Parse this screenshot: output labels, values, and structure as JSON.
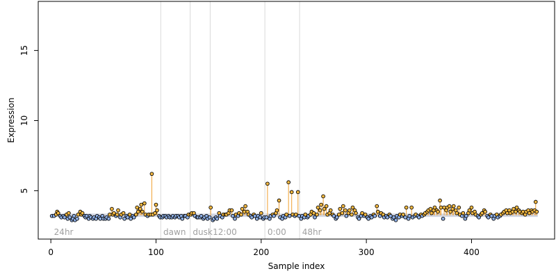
{
  "chart_data": {
    "type": "scatter",
    "xlabel": "Sample index",
    "ylabel": "Expression",
    "xlim": [
      -12,
      479
    ],
    "ylim": [
      1.55,
      18.5
    ],
    "x_ticks": [
      0,
      100,
      200,
      300,
      400
    ],
    "y_ticks": [
      5,
      10,
      15
    ],
    "baseline": 3.25,
    "colors": {
      "stem": "#f0a030",
      "baseline_band": "#9aa4c0",
      "point_high": "#f5b942",
      "point_low": "#8fb0e6",
      "point_edge": "#000000",
      "separator": "#d9d9d9",
      "segment_label": "#a0a0a0"
    },
    "segments": [
      {
        "label": "24hr",
        "start": 1,
        "end": 104
      },
      {
        "label": "dawn",
        "start": 105,
        "end": 132
      },
      {
        "label": "dusk",
        "start": 133,
        "end": 151
      },
      {
        "label": "12:00",
        "start": 152,
        "end": 203
      },
      {
        "label": "0:00",
        "start": 204,
        "end": 236
      },
      {
        "label": "48hr",
        "start": 237,
        "end": 463
      }
    ],
    "separators": [
      104.5,
      132.5,
      151.5,
      203.5,
      236.5
    ],
    "points": [
      [
        1,
        3.2
      ],
      [
        3,
        3.2
      ],
      [
        5,
        3.3
      ],
      [
        6,
        3.5
      ],
      [
        7,
        3.4
      ],
      [
        9,
        3.2
      ],
      [
        10,
        3.1
      ],
      [
        12,
        3.2
      ],
      [
        13,
        3.1
      ],
      [
        15,
        3.3
      ],
      [
        16,
        3.0
      ],
      [
        17,
        3.4
      ],
      [
        18,
        3.1
      ],
      [
        20,
        2.9
      ],
      [
        21,
        3.0
      ],
      [
        22,
        3.2
      ],
      [
        23,
        2.9
      ],
      [
        25,
        3.0
      ],
      [
        26,
        3.3
      ],
      [
        28,
        3.5
      ],
      [
        29,
        3.3
      ],
      [
        30,
        3.4
      ],
      [
        32,
        3.2
      ],
      [
        33,
        3.1
      ],
      [
        34,
        3.2
      ],
      [
        36,
        3.0
      ],
      [
        37,
        3.2
      ],
      [
        38,
        3.1
      ],
      [
        40,
        3.0
      ],
      [
        41,
        3.1
      ],
      [
        43,
        3.0
      ],
      [
        44,
        3.2
      ],
      [
        46,
        3.1
      ],
      [
        47,
        3.0
      ],
      [
        49,
        3.2
      ],
      [
        50,
        3.0
      ],
      [
        52,
        3.0
      ],
      [
        53,
        3.1
      ],
      [
        55,
        3.0
      ],
      [
        56,
        3.3
      ],
      [
        58,
        3.7
      ],
      [
        59,
        3.3
      ],
      [
        60,
        3.4
      ],
      [
        62,
        3.2
      ],
      [
        63,
        3.3
      ],
      [
        64,
        3.6
      ],
      [
        66,
        3.1
      ],
      [
        67,
        3.3
      ],
      [
        69,
        3.4
      ],
      [
        70,
        3.0
      ],
      [
        72,
        3.2
      ],
      [
        73,
        3.1
      ],
      [
        75,
        3.3
      ],
      [
        76,
        3.0
      ],
      [
        78,
        3.2
      ],
      [
        79,
        3.1
      ],
      [
        81,
        3.3
      ],
      [
        82,
        3.8
      ],
      [
        83,
        3.5
      ],
      [
        85,
        3.7
      ],
      [
        86,
        4.0
      ],
      [
        87,
        3.5
      ],
      [
        89,
        4.1
      ],
      [
        90,
        3.3
      ],
      [
        92,
        3.2
      ],
      [
        93,
        3.3
      ],
      [
        95,
        3.3
      ],
      [
        96,
        6.2
      ],
      [
        97,
        3.3
      ],
      [
        99,
        3.4
      ],
      [
        100,
        4.0
      ],
      [
        101,
        3.6
      ],
      [
        103,
        3.2
      ],
      [
        104,
        3.1
      ],
      [
        106,
        3.1
      ],
      [
        107,
        3.2
      ],
      [
        109,
        3.2
      ],
      [
        110,
        3.1
      ],
      [
        112,
        3.2
      ],
      [
        113,
        3.1
      ],
      [
        115,
        3.1
      ],
      [
        116,
        3.2
      ],
      [
        118,
        3.1
      ],
      [
        119,
        3.2
      ],
      [
        121,
        3.2
      ],
      [
        122,
        3.1
      ],
      [
        124,
        3.2
      ],
      [
        125,
        3.0
      ],
      [
        127,
        3.2
      ],
      [
        128,
        3.2
      ],
      [
        130,
        3.1
      ],
      [
        131,
        3.3
      ],
      [
        133,
        3.3
      ],
      [
        134,
        3.4
      ],
      [
        136,
        3.4
      ],
      [
        137,
        3.2
      ],
      [
        139,
        3.1
      ],
      [
        140,
        3.1
      ],
      [
        142,
        3.1
      ],
      [
        143,
        3.2
      ],
      [
        145,
        3.0
      ],
      [
        146,
        3.1
      ],
      [
        148,
        3.2
      ],
      [
        149,
        3.0
      ],
      [
        151,
        3.1
      ],
      [
        152,
        3.8
      ],
      [
        154,
        2.9
      ],
      [
        155,
        3.0
      ],
      [
        157,
        3.1
      ],
      [
        158,
        3.0
      ],
      [
        160,
        3.4
      ],
      [
        161,
        3.2
      ],
      [
        163,
        3.1
      ],
      [
        164,
        3.3
      ],
      [
        166,
        3.3
      ],
      [
        167,
        3.3
      ],
      [
        169,
        3.4
      ],
      [
        170,
        3.6
      ],
      [
        172,
        3.6
      ],
      [
        173,
        3.2
      ],
      [
        175,
        3.0
      ],
      [
        176,
        3.3
      ],
      [
        178,
        3.2
      ],
      [
        179,
        3.4
      ],
      [
        181,
        3.3
      ],
      [
        182,
        3.7
      ],
      [
        184,
        3.5
      ],
      [
        185,
        3.9
      ],
      [
        187,
        3.5
      ],
      [
        188,
        3.3
      ],
      [
        190,
        3.2
      ],
      [
        191,
        3.1
      ],
      [
        193,
        3.3
      ],
      [
        194,
        3.2
      ],
      [
        196,
        3.0
      ],
      [
        197,
        3.2
      ],
      [
        199,
        3.1
      ],
      [
        200,
        3.4
      ],
      [
        202,
        3.0
      ],
      [
        203,
        3.1
      ],
      [
        205,
        3.1
      ],
      [
        206,
        5.5
      ],
      [
        208,
        3.0
      ],
      [
        209,
        3.2
      ],
      [
        211,
        3.3
      ],
      [
        212,
        3.2
      ],
      [
        214,
        3.4
      ],
      [
        215,
        3.6
      ],
      [
        217,
        4.3
      ],
      [
        218,
        3.1
      ],
      [
        220,
        3.0
      ],
      [
        221,
        3.2
      ],
      [
        223,
        3.1
      ],
      [
        224,
        3.3
      ],
      [
        226,
        5.6
      ],
      [
        227,
        3.2
      ],
      [
        229,
        4.9
      ],
      [
        230,
        3.3
      ],
      [
        232,
        3.2
      ],
      [
        233,
        3.3
      ],
      [
        235,
        4.9
      ],
      [
        236,
        3.2
      ],
      [
        238,
        3.0
      ],
      [
        239,
        3.2
      ],
      [
        241,
        3.1
      ],
      [
        242,
        3.3
      ],
      [
        244,
        3.1
      ],
      [
        245,
        3.2
      ],
      [
        247,
        3.3
      ],
      [
        248,
        3.5
      ],
      [
        250,
        3.4
      ],
      [
        251,
        3.1
      ],
      [
        253,
        3.3
      ],
      [
        254,
        3.8
      ],
      [
        256,
        3.6
      ],
      [
        257,
        4.0
      ],
      [
        259,
        4.6
      ],
      [
        260,
        3.7
      ],
      [
        262,
        3.9
      ],
      [
        263,
        3.3
      ],
      [
        265,
        3.4
      ],
      [
        266,
        3.6
      ],
      [
        268,
        3.3
      ],
      [
        269,
        3.2
      ],
      [
        271,
        3.0
      ],
      [
        272,
        3.1
      ],
      [
        274,
        3.3
      ],
      [
        275,
        3.7
      ],
      [
        277,
        3.4
      ],
      [
        278,
        3.9
      ],
      [
        280,
        3.6
      ],
      [
        281,
        3.2
      ],
      [
        283,
        3.4
      ],
      [
        284,
        3.6
      ],
      [
        286,
        3.3
      ],
      [
        287,
        3.8
      ],
      [
        289,
        3.6
      ],
      [
        290,
        3.4
      ],
      [
        292,
        3.1
      ],
      [
        293,
        3.0
      ],
      [
        295,
        3.2
      ],
      [
        296,
        3.4
      ],
      [
        298,
        3.2
      ],
      [
        299,
        3.3
      ],
      [
        301,
        3.1
      ],
      [
        302,
        3.0
      ],
      [
        304,
        3.2
      ],
      [
        305,
        3.1
      ],
      [
        307,
        3.3
      ],
      [
        308,
        3.2
      ],
      [
        310,
        3.9
      ],
      [
        311,
        3.5
      ],
      [
        313,
        3.2
      ],
      [
        314,
        3.4
      ],
      [
        316,
        3.3
      ],
      [
        317,
        3.1
      ],
      [
        319,
        3.2
      ],
      [
        320,
        3.1
      ],
      [
        322,
        3.3
      ],
      [
        323,
        3.2
      ],
      [
        325,
        3.0
      ],
      [
        326,
        3.1
      ],
      [
        328,
        2.9
      ],
      [
        329,
        3.2
      ],
      [
        331,
        3.1
      ],
      [
        332,
        3.3
      ],
      [
        334,
        3.2
      ],
      [
        335,
        3.3
      ],
      [
        337,
        3.1
      ],
      [
        338,
        3.8
      ],
      [
        340,
        3.0
      ],
      [
        341,
        3.2
      ],
      [
        343,
        3.8
      ],
      [
        344,
        3.1
      ],
      [
        346,
        3.2
      ],
      [
        347,
        3.3
      ],
      [
        349,
        3.2
      ],
      [
        350,
        3.1
      ],
      [
        352,
        3.3
      ],
      [
        353,
        3.2
      ],
      [
        355,
        3.3
      ],
      [
        356,
        3.4
      ],
      [
        358,
        3.5
      ],
      [
        359,
        3.6
      ],
      [
        361,
        3.7
      ],
      [
        362,
        3.4
      ],
      [
        364,
        3.6
      ],
      [
        365,
        3.8
      ],
      [
        367,
        3.6
      ],
      [
        368,
        3.5
      ],
      [
        370,
        4.3
      ],
      [
        371,
        3.8
      ],
      [
        373,
        3.0
      ],
      [
        374,
        3.8
      ],
      [
        376,
        3.6
      ],
      [
        377,
        3.8
      ],
      [
        379,
        3.9
      ],
      [
        380,
        3.5
      ],
      [
        382,
        3.7
      ],
      [
        383,
        3.9
      ],
      [
        385,
        3.6
      ],
      [
        386,
        3.4
      ],
      [
        388,
        3.8
      ],
      [
        389,
        3.3
      ],
      [
        391,
        3.2
      ],
      [
        392,
        3.4
      ],
      [
        394,
        3.0
      ],
      [
        395,
        3.2
      ],
      [
        397,
        3.4
      ],
      [
        398,
        3.6
      ],
      [
        400,
        3.8
      ],
      [
        401,
        3.4
      ],
      [
        403,
        3.5
      ],
      [
        404,
        3.3
      ],
      [
        406,
        3.2
      ],
      [
        407,
        3.1
      ],
      [
        409,
        3.3
      ],
      [
        410,
        3.4
      ],
      [
        412,
        3.6
      ],
      [
        413,
        3.5
      ],
      [
        415,
        3.2
      ],
      [
        416,
        3.1
      ],
      [
        418,
        3.3
      ],
      [
        419,
        3.2
      ],
      [
        421,
        3.0
      ],
      [
        422,
        3.2
      ],
      [
        424,
        3.3
      ],
      [
        425,
        3.1
      ],
      [
        427,
        3.2
      ],
      [
        428,
        3.3
      ],
      [
        430,
        3.4
      ],
      [
        431,
        3.5
      ],
      [
        433,
        3.6
      ],
      [
        434,
        3.4
      ],
      [
        436,
        3.6
      ],
      [
        437,
        3.4
      ],
      [
        439,
        3.5
      ],
      [
        440,
        3.7
      ],
      [
        442,
        3.5
      ],
      [
        443,
        3.8
      ],
      [
        445,
        3.6
      ],
      [
        446,
        3.5
      ],
      [
        448,
        3.4
      ],
      [
        449,
        3.5
      ],
      [
        451,
        3.3
      ],
      [
        452,
        3.5
      ],
      [
        454,
        3.6
      ],
      [
        455,
        3.4
      ],
      [
        457,
        3.6
      ],
      [
        458,
        3.5
      ],
      [
        460,
        3.6
      ],
      [
        461,
        4.2
      ],
      [
        462,
        3.5
      ]
    ]
  }
}
